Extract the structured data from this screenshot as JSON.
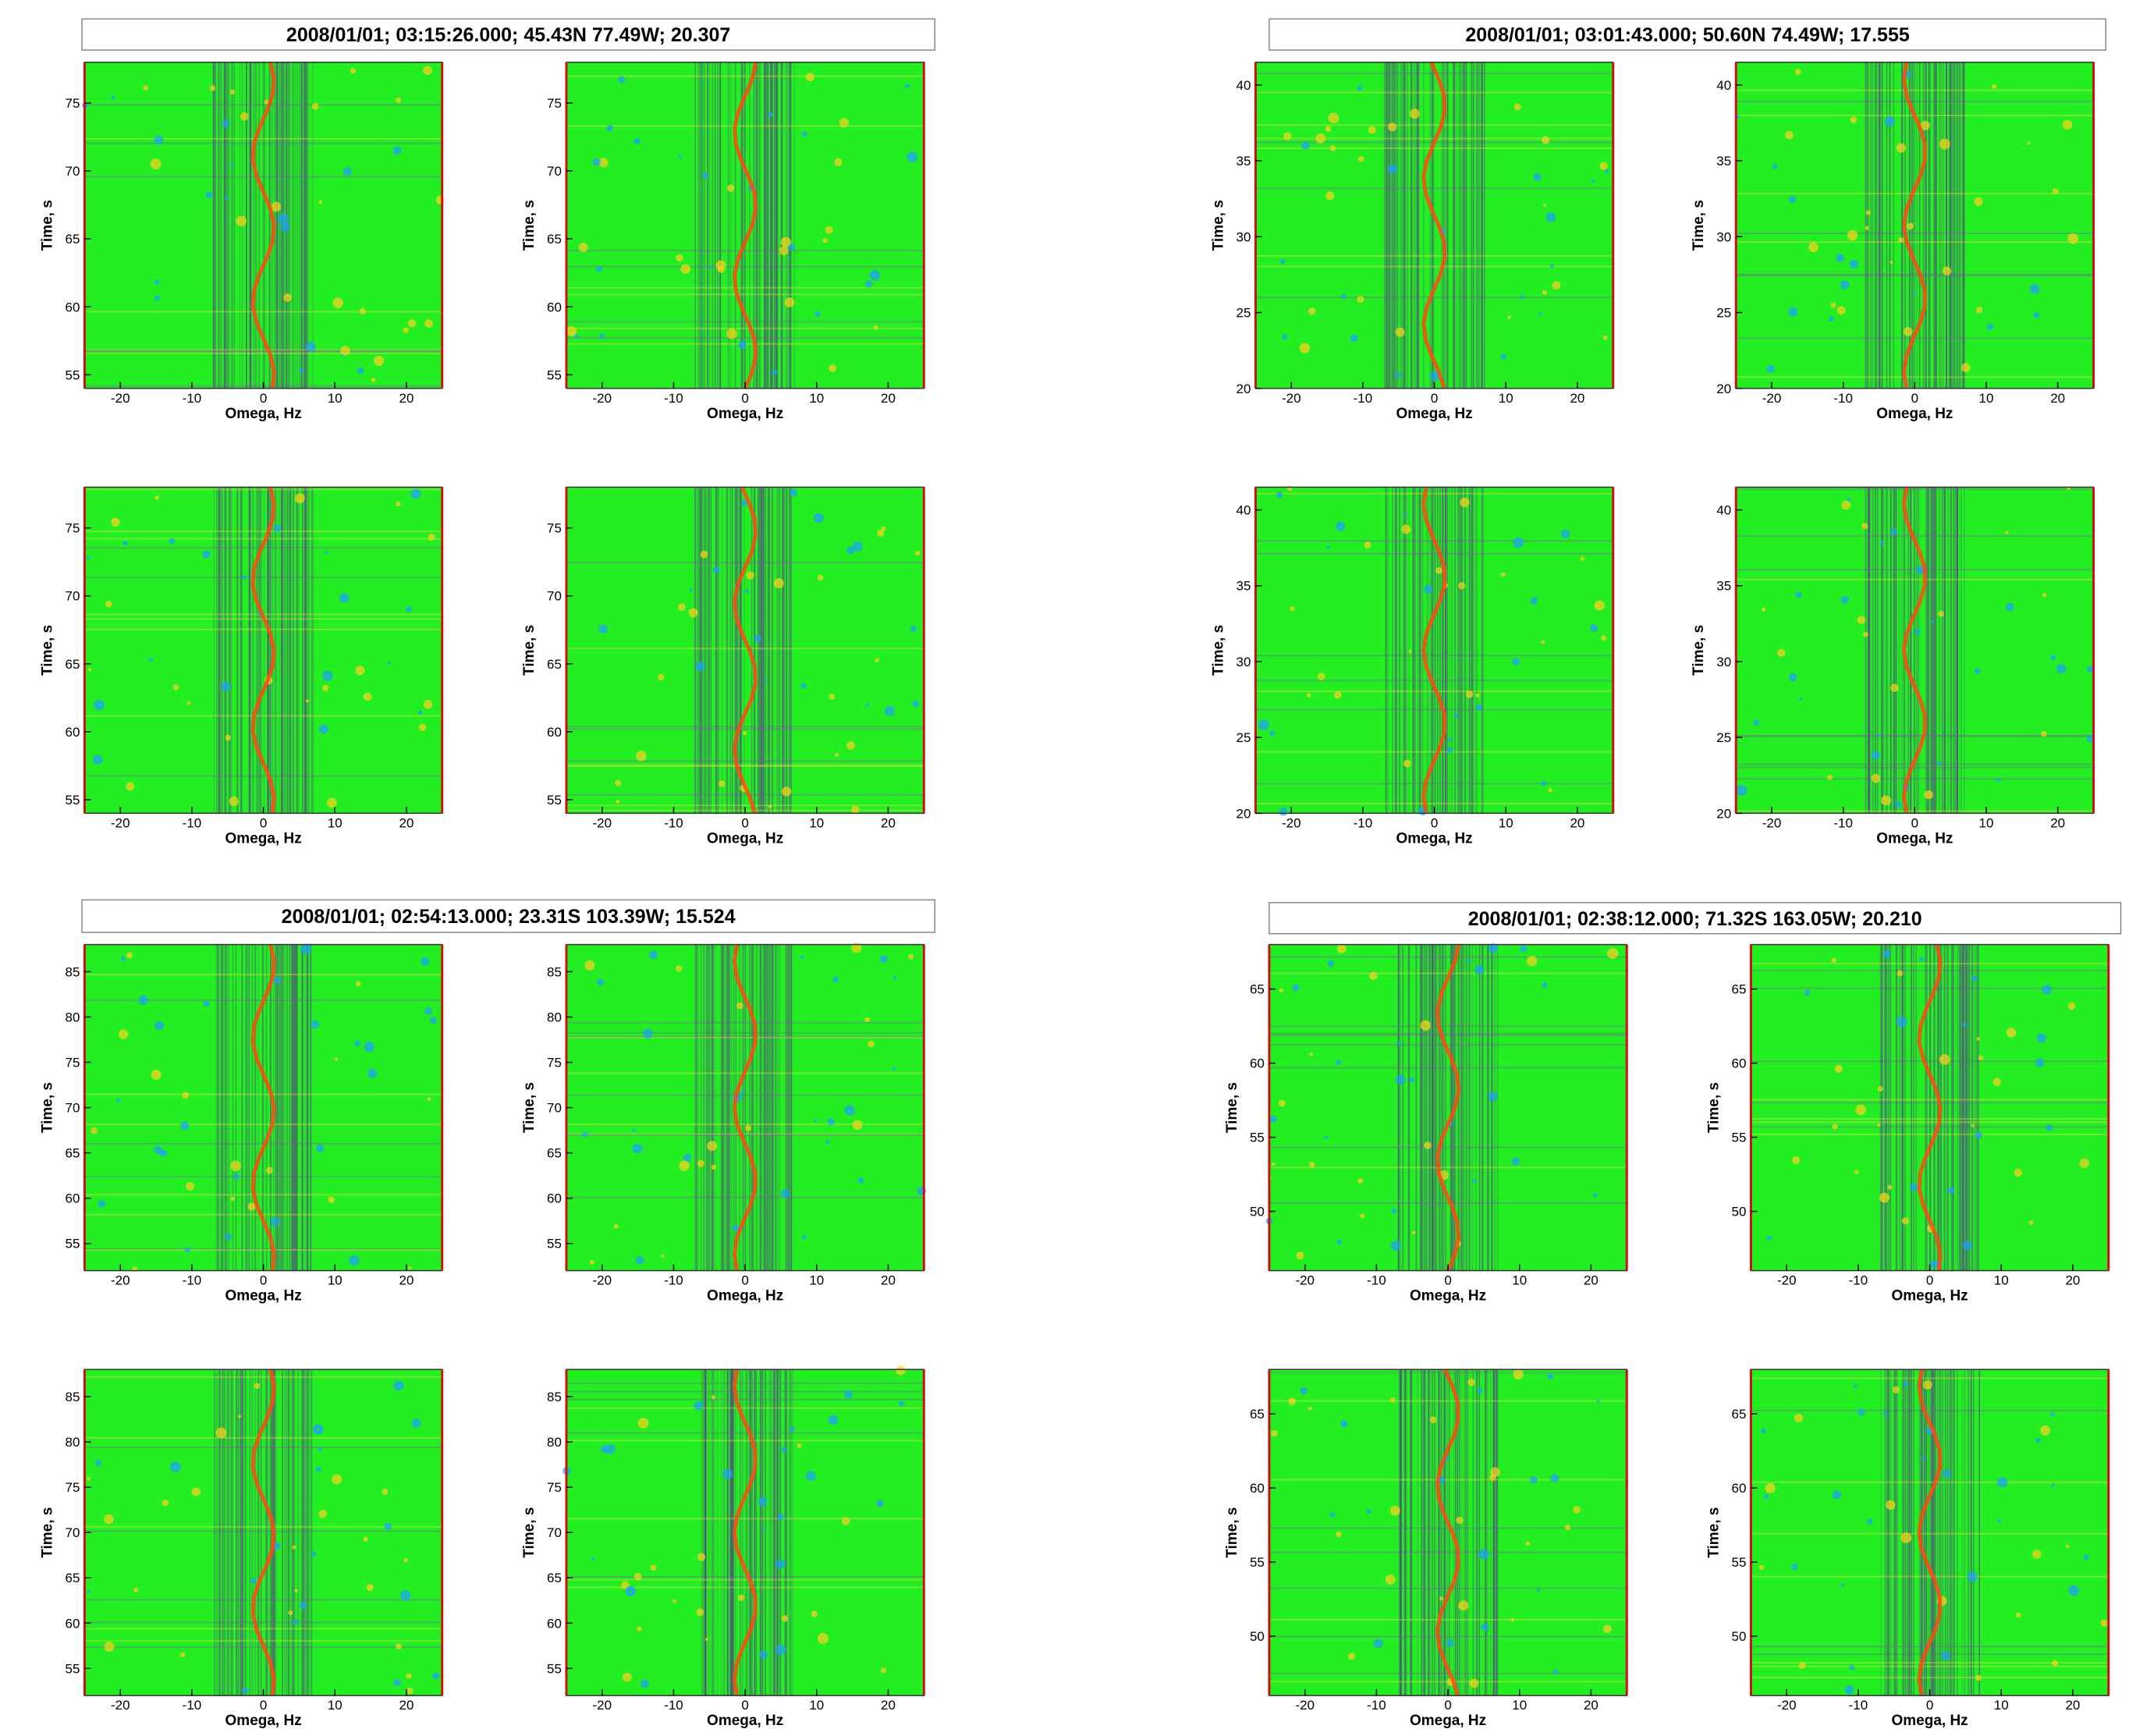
{
  "chart_data": [
    {
      "title": "2008/01/01; 03:15:26.000; 45.43N  77.49W; 20.307",
      "panels": [
        {
          "type": "heatmap",
          "xlabel": "Omega, Hz",
          "ylabel": "Time, s",
          "xlim": [
            -25,
            25
          ],
          "xticks": [
            -20,
            -10,
            0,
            10,
            20
          ],
          "ylim": [
            54,
            78
          ],
          "yticks": [
            55,
            60,
            65,
            70,
            75
          ]
        },
        {
          "type": "heatmap",
          "xlabel": "Omega, Hz",
          "ylabel": "Time, s",
          "xlim": [
            -25,
            25
          ],
          "xticks": [
            -20,
            -10,
            0,
            10,
            20
          ],
          "ylim": [
            54,
            78
          ],
          "yticks": [
            55,
            60,
            65,
            70,
            75
          ]
        },
        {
          "type": "heatmap",
          "xlabel": "Omega, Hz",
          "ylabel": "Time, s",
          "xlim": [
            -25,
            25
          ],
          "xticks": [
            -20,
            -10,
            0,
            10,
            20
          ],
          "ylim": [
            54,
            78
          ],
          "yticks": [
            55,
            60,
            65,
            70,
            75
          ]
        },
        {
          "type": "heatmap",
          "xlabel": "Omega, Hz",
          "ylabel": "Time, s",
          "xlim": [
            -25,
            25
          ],
          "xticks": [
            -20,
            -10,
            0,
            10,
            20
          ],
          "ylim": [
            54,
            78
          ],
          "yticks": [
            55,
            60,
            65,
            70,
            75
          ]
        }
      ]
    },
    {
      "title": "2008/01/01; 03:01:43.000; 50.60N  74.49W; 17.555",
      "panels": [
        {
          "type": "heatmap",
          "xlabel": "Omega, Hz",
          "ylabel": "Time, s",
          "xlim": [
            -25,
            25
          ],
          "xticks": [
            -20,
            -10,
            0,
            10,
            20
          ],
          "ylim": [
            20,
            41.5
          ],
          "yticks": [
            20,
            25,
            30,
            35,
            40
          ]
        },
        {
          "type": "heatmap",
          "xlabel": "Omega, Hz",
          "ylabel": "Time, s",
          "xlim": [
            -25,
            25
          ],
          "xticks": [
            -20,
            -10,
            0,
            10,
            20
          ],
          "ylim": [
            20,
            41.5
          ],
          "yticks": [
            20,
            25,
            30,
            35,
            40
          ]
        },
        {
          "type": "heatmap",
          "xlabel": "Omega, Hz",
          "ylabel": "Time, s",
          "xlim": [
            -25,
            25
          ],
          "xticks": [
            -20,
            -10,
            0,
            10,
            20
          ],
          "ylim": [
            20,
            41.5
          ],
          "yticks": [
            20,
            25,
            30,
            35,
            40
          ]
        },
        {
          "type": "heatmap",
          "xlabel": "Omega, Hz",
          "ylabel": "Time, s",
          "xlim": [
            -25,
            25
          ],
          "xticks": [
            -20,
            -10,
            0,
            10,
            20
          ],
          "ylim": [
            20,
            41.5
          ],
          "yticks": [
            20,
            25,
            30,
            35,
            40
          ]
        }
      ]
    },
    {
      "title": "2008/01/01; 02:54:13.000; 23.31S 103.39W; 15.524",
      "panels": [
        {
          "type": "heatmap",
          "xlabel": "Omega, Hz",
          "ylabel": "Time, s",
          "xlim": [
            -25,
            25
          ],
          "xticks": [
            -20,
            -10,
            0,
            10,
            20
          ],
          "ylim": [
            52,
            88
          ],
          "yticks": [
            55,
            60,
            65,
            70,
            75,
            80,
            85
          ]
        },
        {
          "type": "heatmap",
          "xlabel": "Omega, Hz",
          "ylabel": "Time, s",
          "xlim": [
            -25,
            25
          ],
          "xticks": [
            -20,
            -10,
            0,
            10,
            20
          ],
          "ylim": [
            52,
            88
          ],
          "yticks": [
            55,
            60,
            65,
            70,
            75,
            80,
            85
          ]
        },
        {
          "type": "heatmap",
          "xlabel": "Omega, Hz",
          "ylabel": "Time, s",
          "xlim": [
            -25,
            25
          ],
          "xticks": [
            -20,
            -10,
            0,
            10,
            20
          ],
          "ylim": [
            52,
            88
          ],
          "yticks": [
            55,
            60,
            65,
            70,
            75,
            80,
            85
          ]
        },
        {
          "type": "heatmap",
          "xlabel": "Omega, Hz",
          "ylabel": "Time, s",
          "xlim": [
            -25,
            25
          ],
          "xticks": [
            -20,
            -10,
            0,
            10,
            20
          ],
          "ylim": [
            52,
            88
          ],
          "yticks": [
            55,
            60,
            65,
            70,
            75,
            80,
            85
          ]
        }
      ]
    },
    {
      "title": "2008/01/01; 02:38:12.000; 71.32S 163.05W; 20.210",
      "panels": [
        {
          "type": "heatmap",
          "xlabel": "Omega, Hz",
          "ylabel": "Time, s",
          "xlim": [
            -25,
            25
          ],
          "xticks": [
            -20,
            -10,
            0,
            10,
            20
          ],
          "ylim": [
            46,
            68
          ],
          "yticks": [
            50,
            55,
            60,
            65
          ]
        },
        {
          "type": "heatmap",
          "xlabel": "Omega, Hz",
          "ylabel": "Time, s",
          "xlim": [
            -25,
            25
          ],
          "xticks": [
            -20,
            -10,
            0,
            10,
            20
          ],
          "ylim": [
            46,
            68
          ],
          "yticks": [
            50,
            55,
            60,
            65
          ]
        },
        {
          "type": "heatmap",
          "xlabel": "Omega, Hz",
          "ylabel": "Time, s",
          "xlim": [
            -25,
            25
          ],
          "xticks": [
            -20,
            -10,
            0,
            10,
            20
          ],
          "ylim": [
            46,
            68
          ],
          "yticks": [
            50,
            55,
            60,
            65
          ]
        },
        {
          "type": "heatmap",
          "xlabel": "Omega, Hz",
          "ylabel": "Time, s",
          "xlim": [
            -25,
            25
          ],
          "xticks": [
            -20,
            -10,
            0,
            10,
            20
          ],
          "ylim": [
            46,
            68
          ],
          "yticks": [
            50,
            55,
            60,
            65
          ]
        }
      ]
    }
  ]
}
